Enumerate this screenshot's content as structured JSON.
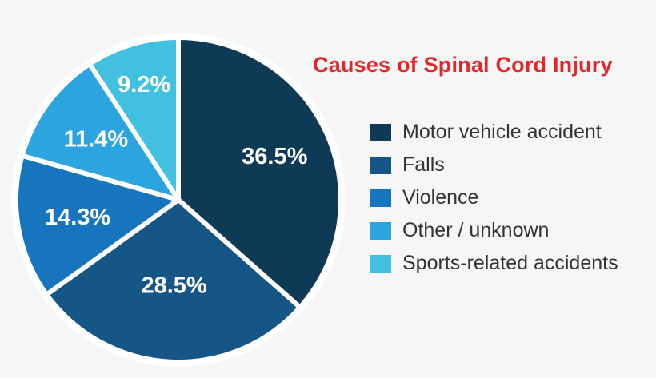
{
  "title": {
    "text": "Causes of Spinal Cord Injury",
    "color": "#e4262b"
  },
  "colors": {
    "background": "#f6f6f7",
    "value_label": "#ffffff",
    "legend_text": "#333333",
    "slice_separator": "#ffffff"
  },
  "chart_data": {
    "type": "pie",
    "title": "Causes of Spinal Cord Injury",
    "start_angle": "12 o'clock, clockwise",
    "legend_position": "right",
    "total": 99.9,
    "slices": [
      {
        "label": "Motor vehicle accident",
        "value": 36.5,
        "display": "36.5%",
        "color": "#0f3a56"
      },
      {
        "label": "Falls",
        "value": 28.5,
        "display": "28.5%",
        "color": "#165687"
      },
      {
        "label": "Violence",
        "value": 14.3,
        "display": "14.3%",
        "color": "#1675bd"
      },
      {
        "label": "Other / unknown",
        "value": 11.4,
        "display": "11.4%",
        "color": "#2ba4e0"
      },
      {
        "label": "Sports-related accidents",
        "value": 9.2,
        "display": "9.2%",
        "color": "#41c1df"
      }
    ]
  }
}
